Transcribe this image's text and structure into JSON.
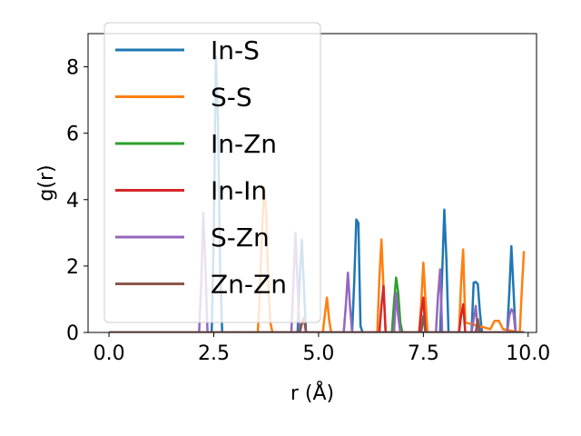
{
  "chart_data": {
    "type": "line",
    "xlabel": "r (Å)",
    "ylabel": "g(r)",
    "xlim": [
      -0.5,
      10.2
    ],
    "ylim": [
      0,
      9
    ],
    "xticks": [
      0.0,
      2.5,
      5.0,
      7.5,
      10.0
    ],
    "xtick_labels": [
      "0.0",
      "2.5",
      "5.0",
      "7.5",
      "10.0"
    ],
    "yticks": [
      0,
      2,
      4,
      6,
      8
    ],
    "ytick_labels": [
      "0",
      "2",
      "4",
      "6",
      "8"
    ],
    "legend_position": "top-left",
    "grid": false,
    "series": [
      {
        "name": "In-S",
        "color": "#1f77b4",
        "x": [
          0,
          2.45,
          2.5,
          2.55,
          2.6,
          2.65,
          2.7,
          4.5,
          4.55,
          4.6,
          4.65,
          4.7,
          5.8,
          5.85,
          5.9,
          5.95,
          6.0,
          6.05,
          7.9,
          7.95,
          8.0,
          8.05,
          8.1,
          8.65,
          8.7,
          8.75,
          8.8,
          8.85,
          8.9,
          9.5,
          9.55,
          9.6,
          9.65,
          9.7,
          9.9
        ],
        "y": [
          0,
          0,
          3.0,
          8.3,
          6.4,
          2.0,
          0,
          0,
          1.6,
          2.8,
          1.4,
          0,
          0,
          1.5,
          3.4,
          3.3,
          0.2,
          0,
          0,
          1.8,
          3.7,
          2.2,
          0,
          0,
          1.5,
          1.52,
          1.45,
          0.6,
          0,
          0,
          1.2,
          2.6,
          1.3,
          0,
          0
        ]
      },
      {
        "name": "S-S",
        "color": "#ff7f0e",
        "x": [
          0,
          3.55,
          3.6,
          3.65,
          3.7,
          3.75,
          3.8,
          3.85,
          3.9,
          5.1,
          5.2,
          5.25,
          5.3,
          6.4,
          6.45,
          6.5,
          6.55,
          6.6,
          7.4,
          7.45,
          7.5,
          7.55,
          7.6,
          8.35,
          8.4,
          8.45,
          8.5,
          9.1,
          9.2,
          9.3,
          9.4,
          9.8,
          9.85,
          9.9
        ],
        "y": [
          0,
          0,
          1.2,
          3.0,
          4.4,
          3.6,
          1.5,
          0.3,
          0,
          0,
          1.05,
          0.4,
          0,
          0,
          1.6,
          2.8,
          1.3,
          0,
          0,
          0.9,
          2.1,
          1.0,
          0,
          0,
          1.5,
          2.5,
          0.3,
          0.1,
          0.35,
          0.35,
          0.1,
          0,
          1.3,
          2.45
        ]
      },
      {
        "name": "In-Zn",
        "color": "#2ca02c",
        "x": [
          0,
          6.75,
          6.8,
          6.85,
          6.9,
          6.95,
          7.0,
          9.9
        ],
        "y": [
          0,
          0,
          0.9,
          1.65,
          1.2,
          0.3,
          0,
          0
        ]
      },
      {
        "name": "In-In",
        "color": "#d62728",
        "x": [
          0,
          6.45,
          6.5,
          6.55,
          6.6,
          7.4,
          7.45,
          7.5,
          7.55,
          8.35,
          8.4,
          8.45,
          8.5,
          9.9
        ],
        "y": [
          0,
          0,
          0.8,
          1.4,
          0,
          0,
          0.6,
          1.05,
          0,
          0,
          0.5,
          0.85,
          0,
          0
        ]
      },
      {
        "name": "S-Zn",
        "color": "#9467bd",
        "x": [
          0,
          2.15,
          2.2,
          2.25,
          2.3,
          2.35,
          4.35,
          4.4,
          4.45,
          4.5,
          4.55,
          5.6,
          5.65,
          5.7,
          5.75,
          5.8,
          6.8,
          6.85,
          6.9,
          6.95,
          7.8,
          7.85,
          7.9,
          7.95,
          8.65,
          8.7,
          8.75,
          8.8,
          9.5,
          9.55,
          9.6,
          9.65,
          9.7,
          9.9
        ],
        "y": [
          0,
          0,
          1.5,
          3.6,
          2.0,
          0,
          0,
          1.5,
          3.0,
          1.4,
          0,
          0,
          0.8,
          1.8,
          0.8,
          0,
          0,
          1.2,
          0.5,
          0,
          0,
          1.1,
          1.9,
          0,
          0,
          0.4,
          0.8,
          0,
          0,
          0.5,
          0.7,
          0.6,
          0,
          0
        ]
      },
      {
        "name": "Zn-Zn",
        "color": "#8c564b",
        "x": [
          0,
          4.55,
          4.6,
          4.65,
          4.7,
          7.45,
          7.5,
          7.55,
          8.75,
          8.8,
          8.85,
          9.9
        ],
        "y": [
          0,
          0,
          0.25,
          0.45,
          0,
          0,
          0.5,
          0,
          0,
          0.4,
          0,
          0
        ]
      }
    ]
  }
}
